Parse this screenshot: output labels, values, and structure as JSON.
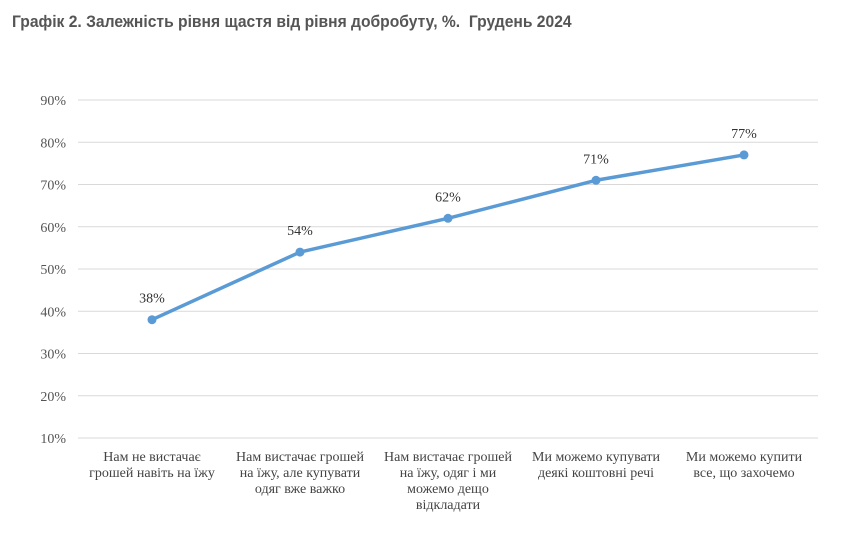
{
  "chart_data": {
    "type": "line",
    "title": "Графік 2. Залежність рівня щастя від рівня добробуту, %.  Грудень 2024",
    "xlabel": "",
    "ylabel": "",
    "categories": [
      "Нам не вистачає грошей навіть на їжу",
      "Нам вистачає грошей на їжу, але купувати одяг вже важко",
      "Нам вистачає грошей на їжу, одяг і ми можемо дещо відкладати",
      "Ми можемо купувати деякі коштовні речі",
      "Ми можемо  купити все, що захочемо"
    ],
    "values": [
      38,
      54,
      62,
      71,
      77
    ],
    "data_labels": [
      "38%",
      "54%",
      "62%",
      "71%",
      "77%"
    ],
    "ylim": [
      10,
      90
    ],
    "yticks": [
      10,
      20,
      30,
      40,
      50,
      60,
      70,
      80,
      90
    ],
    "ytick_labels": [
      "10%",
      "20%",
      "30%",
      "40%",
      "50%",
      "60%",
      "70%",
      "80%",
      "90%"
    ],
    "grid": true,
    "legend": "none",
    "colors": {
      "line": "#5b9bd5",
      "grid": "#d9d9d9",
      "title": "#555555"
    }
  }
}
